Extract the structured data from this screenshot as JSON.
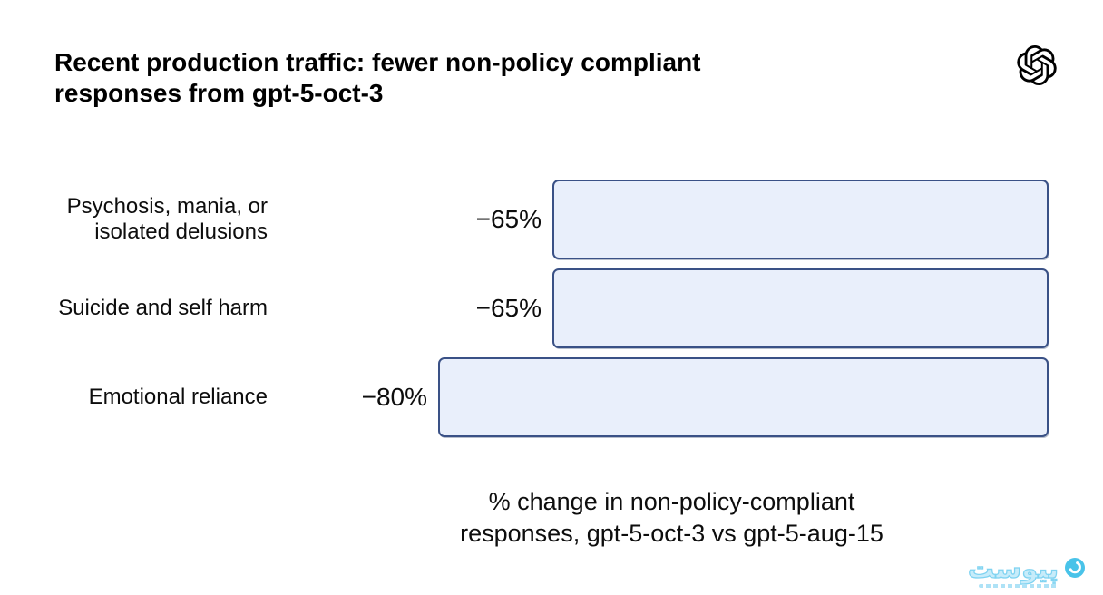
{
  "header": {
    "title_lines": [
      "Recent production traffic: fewer non-policy compliant",
      "responses from gpt-5-oct-3"
    ],
    "logo_icon": "openai-logo"
  },
  "chart_data": {
    "type": "bar",
    "orientation": "horizontal",
    "title": "Recent production traffic: fewer non-policy compliant responses from gpt-5-oct-3",
    "categories": [
      "Psychosis, mania, or isolated delusions",
      "Suicide and self harm",
      "Emotional reliance"
    ],
    "values": [
      -65,
      -65,
      -80
    ],
    "bar_labels": [
      "−65%",
      "−65%",
      "−80%"
    ],
    "xlabel": "% change in non-policy-compliant responses, gpt-5-oct-3 vs gpt-5-aug-15",
    "xlabel_lines": [
      "% change in non-policy-compliant",
      "responses, gpt-5-oct-3 vs gpt-5-aug-15"
    ],
    "xlim": [
      -80,
      0
    ],
    "baseline": "right",
    "grid": false,
    "legend": false,
    "bar_fill_color": "#e9effb",
    "bar_border_color": "#3a5186"
  },
  "watermark": {
    "brand": "پیوست",
    "accent_color": "#7fd3f1",
    "circle_color": "#49c3e9"
  }
}
